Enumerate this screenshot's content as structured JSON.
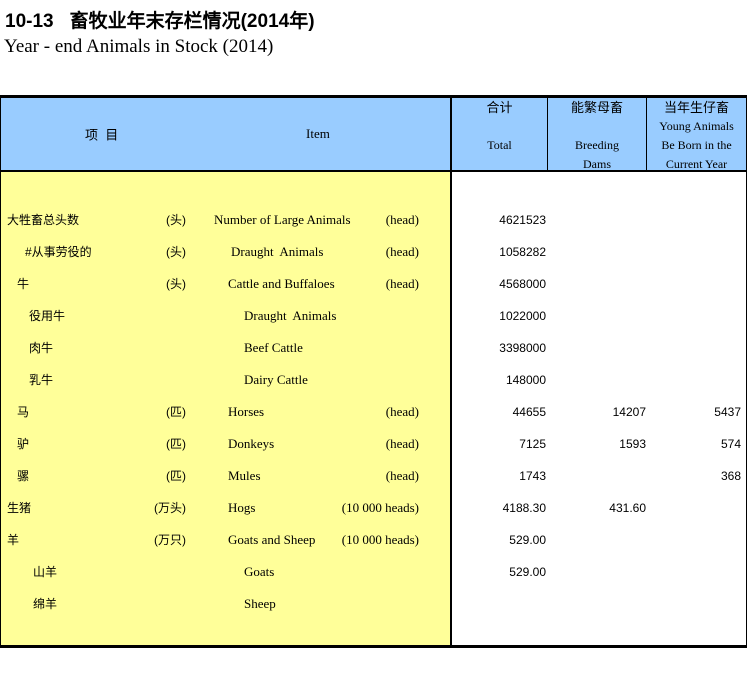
{
  "title": {
    "number": "10-13",
    "cn": "畜牧业年末存栏情况(2014年)",
    "en": "Year - end Animals in Stock (2014)"
  },
  "header": {
    "item_cn": "项  目",
    "item_en": "Item",
    "total_lines": [
      "合计",
      "",
      "Total",
      ""
    ],
    "dams_lines": [
      "能繁母畜",
      "",
      "Breeding",
      "Dams"
    ],
    "young_lines": [
      "当年生仔畜",
      "Young Animals",
      "Be Born in the",
      "Current Year"
    ]
  },
  "colors": {
    "header_bg": "#99CCFF",
    "item_panel_bg": "#FFFF99",
    "border": "#000000"
  },
  "table": {
    "rows": [
      {
        "cn": "大牲畜总头数",
        "cn_unit": "(头)",
        "en": "Number of Large Animals",
        "en_unit": "(head)",
        "total": "4621523",
        "dams": "",
        "young": "",
        "cn_level": 0,
        "en_level": 0
      },
      {
        "cn": "#从事劳役的",
        "cn_unit": "(头)",
        "en": "Draught  Animals",
        "en_unit": "(head)",
        "total": "1058282",
        "dams": "",
        "young": "",
        "cn_level": 2,
        "en_level": 2
      },
      {
        "cn": "牛",
        "cn_unit": "(头)",
        "en": "Cattle and Buffaloes",
        "en_unit": "(head)",
        "total": "4568000",
        "dams": "",
        "young": "",
        "cn_level": 1,
        "en_level": 1
      },
      {
        "cn": "役用牛",
        "cn_unit": "",
        "en": "Draught  Animals",
        "en_unit": "",
        "total": "1022000",
        "dams": "",
        "young": "",
        "cn_level": 3,
        "en_level": 3
      },
      {
        "cn": "肉牛",
        "cn_unit": "",
        "en": "Beef Cattle",
        "en_unit": "",
        "total": "3398000",
        "dams": "",
        "young": "",
        "cn_level": 3,
        "en_level": 3
      },
      {
        "cn": "乳牛",
        "cn_unit": "",
        "en": "Dairy Cattle",
        "en_unit": "",
        "total": "148000",
        "dams": "",
        "young": "",
        "cn_level": 3,
        "en_level": 3
      },
      {
        "cn": "马",
        "cn_unit": "(匹)",
        "en": "Horses",
        "en_unit": "(head)",
        "total": "44655",
        "dams": "14207",
        "young": "5437",
        "cn_level": 1,
        "en_level": 1
      },
      {
        "cn": "驴",
        "cn_unit": "(匹)",
        "en": "Donkeys",
        "en_unit": "(head)",
        "total": "7125",
        "dams": "1593",
        "young": "574",
        "cn_level": 1,
        "en_level": 1
      },
      {
        "cn": "骡",
        "cn_unit": "(匹)",
        "en": "Mules",
        "en_unit": "(head)",
        "total": "1743",
        "dams": "",
        "young": "368",
        "cn_level": 1,
        "en_level": 1
      },
      {
        "cn": "生猪",
        "cn_unit": "(万头)",
        "en": "Hogs",
        "en_unit": "(10 000 heads)",
        "total": "4188.30",
        "dams": "431.60",
        "young": "",
        "cn_level": 0,
        "en_level": 1
      },
      {
        "cn": "羊",
        "cn_unit": "(万只)",
        "en": "Goats and Sheep",
        "en_unit": "(10 000 heads)",
        "total": "529.00",
        "dams": "",
        "young": "",
        "cn_level": 0,
        "en_level": 1
      },
      {
        "cn": "山羊",
        "cn_unit": "",
        "en": "Goats",
        "en_unit": "",
        "total": "529.00",
        "dams": "",
        "young": "",
        "cn_level": 4,
        "en_level": 3
      },
      {
        "cn": "绵羊",
        "cn_unit": "",
        "en": "Sheep",
        "en_unit": "",
        "total": "",
        "dams": "",
        "young": "",
        "cn_level": 4,
        "en_level": 3
      }
    ]
  }
}
